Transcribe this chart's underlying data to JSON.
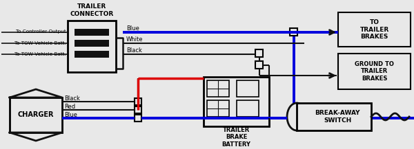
{
  "bg_color": "#e8e8e8",
  "labels": {
    "trailer_connector": "TRAILER\nCONNECTOR",
    "to_ctrl": "To Controller Output",
    "to_tow1": "To TOW Vehicle Batt.",
    "to_tow2": "To TOW Vehicle Batt.",
    "blue_lbl": "Blue",
    "white_lbl": "White",
    "black_lbl": "Black",
    "to_brakes": "TO\nTRAILER\nBRAKES",
    "ground_brakes": "GROUND TO\nTRAILER\nBRAKES",
    "charger": "CHARGER",
    "trailer_battery": "TRAILER\nBRAKE\nBATTERY",
    "breakaway": "BREAK-AWAY\nSWITCH",
    "black_bot": "Black",
    "red_bot": "Red",
    "blue_bot": "Blue"
  },
  "colors": {
    "blue": "#0000dd",
    "red": "#dd0000",
    "black": "#111111",
    "white_wire": "#888888",
    "bg": "#e8e8e8",
    "box_face": "#e8e8e8"
  }
}
